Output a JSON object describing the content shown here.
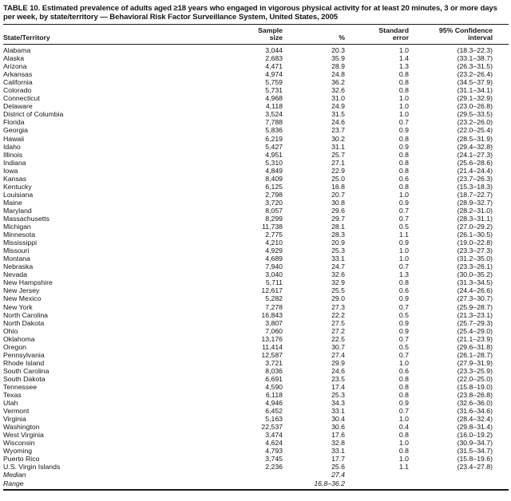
{
  "title": "TABLE 10. Estimated prevalence of adults aged ≥18 years who engaged in vigorous physical activity for at least 20 minutes, 3 or more days per week, by state/territory — Behavioral Risk Factor Surveillance System, United States, 2005",
  "columns": {
    "state": "State/Territory",
    "sample_top": "Sample",
    "sample_bottom": "size",
    "percent": "%",
    "se_top": "Standard",
    "se_bottom": "error",
    "ci_top": "95% Confidence",
    "ci_bottom": "interval"
  },
  "rows": [
    {
      "state": "Alabama",
      "sample": "3,044",
      "percent": "20.3",
      "se": "1.0",
      "ci": "(18.3–22.3)"
    },
    {
      "state": "Alaska",
      "sample": "2,683",
      "percent": "35.9",
      "se": "1.4",
      "ci": "(33.1–38.7)"
    },
    {
      "state": "Arizona",
      "sample": "4,471",
      "percent": "28.9",
      "se": "1.3",
      "ci": "(26.3–31.5)"
    },
    {
      "state": "Arkansas",
      "sample": "4,974",
      "percent": "24.8",
      "se": "0.8",
      "ci": "(23.2–26.4)"
    },
    {
      "state": "California",
      "sample": "5,759",
      "percent": "36.2",
      "se": "0.8",
      "ci": "(34.5–37.9)"
    },
    {
      "state": "Colorado",
      "sample": "5,731",
      "percent": "32.6",
      "se": "0.8",
      "ci": "(31.1–34.1)"
    },
    {
      "state": "Connecticut",
      "sample": "4,968",
      "percent": "31.0",
      "se": "1.0",
      "ci": "(29.1–32.9)"
    },
    {
      "state": "Delaware",
      "sample": "4,118",
      "percent": "24.9",
      "se": "1.0",
      "ci": "(23.0–26.8)"
    },
    {
      "state": "District of Columbia",
      "sample": "3,524",
      "percent": "31.5",
      "se": "1.0",
      "ci": "(29.5–33.5)"
    },
    {
      "state": "Florida",
      "sample": "7,788",
      "percent": "24.6",
      "se": "0.7",
      "ci": "(23.2–26.0)"
    },
    {
      "state": "Georgia",
      "sample": "5,836",
      "percent": "23.7",
      "se": "0.9",
      "ci": "(22.0–25.4)"
    },
    {
      "state": "Hawaii",
      "sample": "6,219",
      "percent": "30.2",
      "se": "0.8",
      "ci": "(28.5–31.9)"
    },
    {
      "state": "Idaho",
      "sample": "5,427",
      "percent": "31.1",
      "se": "0.9",
      "ci": "(29.4–32.8)"
    },
    {
      "state": "Illinois",
      "sample": "4,951",
      "percent": "25.7",
      "se": "0.8",
      "ci": "(24.1–27.3)"
    },
    {
      "state": "Indiana",
      "sample": "5,310",
      "percent": "27.1",
      "se": "0.8",
      "ci": "(25.6–28.6)"
    },
    {
      "state": "Iowa",
      "sample": "4,849",
      "percent": "22.9",
      "se": "0.8",
      "ci": "(21.4–24.4)"
    },
    {
      "state": "Kansas",
      "sample": "8,409",
      "percent": "25.0",
      "se": "0.6",
      "ci": "(23.7–26.3)"
    },
    {
      "state": "Kentucky",
      "sample": "6,125",
      "percent": "16.8",
      "se": "0.8",
      "ci": "(15.3–18.3)"
    },
    {
      "state": "Louisiana",
      "sample": "2,798",
      "percent": "20.7",
      "se": "1.0",
      "ci": "(18.7–22.7)"
    },
    {
      "state": "Maine",
      "sample": "3,720",
      "percent": "30.8",
      "se": "0.9",
      "ci": "(28.9–32.7)"
    },
    {
      "state": "Maryland",
      "sample": "8,057",
      "percent": "29.6",
      "se": "0.7",
      "ci": "(28.2–31.0)"
    },
    {
      "state": "Massachusetts",
      "sample": "8,299",
      "percent": "29.7",
      "se": "0.7",
      "ci": "(28.3–31.1)"
    },
    {
      "state": "Michigan",
      "sample": "11,738",
      "percent": "28.1",
      "se": "0.5",
      "ci": "(27.0–29.2)"
    },
    {
      "state": "Minnesota",
      "sample": "2,775",
      "percent": "28.3",
      "se": "1.1",
      "ci": "(26.1–30.5)"
    },
    {
      "state": "Mississippi",
      "sample": "4,210",
      "percent": "20.9",
      "se": "0.9",
      "ci": "(19.0–22.8)"
    },
    {
      "state": "Missouri",
      "sample": "4,929",
      "percent": "25.3",
      "se": "1.0",
      "ci": "(23.3–27.3)"
    },
    {
      "state": "Montana",
      "sample": "4,689",
      "percent": "33.1",
      "se": "1.0",
      "ci": "(31.2–35.0)"
    },
    {
      "state": "Nebraska",
      "sample": "7,940",
      "percent": "24.7",
      "se": "0.7",
      "ci": "(23.3–26.1)"
    },
    {
      "state": "Nevada",
      "sample": "3,040",
      "percent": "32.6",
      "se": "1.3",
      "ci": "(30.0–35.2)"
    },
    {
      "state": "New Hampshire",
      "sample": "5,711",
      "percent": "32.9",
      "se": "0.8",
      "ci": "(31.3–34.5)"
    },
    {
      "state": "New Jersey",
      "sample": "12,617",
      "percent": "25.5",
      "se": "0.6",
      "ci": "(24.4–26.6)"
    },
    {
      "state": "New Mexico",
      "sample": "5,282",
      "percent": "29.0",
      "se": "0.9",
      "ci": "(27.3–30.7)"
    },
    {
      "state": "New York",
      "sample": "7,278",
      "percent": "27.3",
      "se": "0.7",
      "ci": "(25.9–28.7)"
    },
    {
      "state": "North Carolina",
      "sample": "16,843",
      "percent": "22.2",
      "se": "0.5",
      "ci": "(21.3–23.1)"
    },
    {
      "state": "North Dakota",
      "sample": "3,807",
      "percent": "27.5",
      "se": "0.9",
      "ci": "(25.7–29.3)"
    },
    {
      "state": "Ohio",
      "sample": "7,060",
      "percent": "27.2",
      "se": "0.9",
      "ci": "(25.4–29.0)"
    },
    {
      "state": "Oklahoma",
      "sample": "13,176",
      "percent": "22.5",
      "se": "0.7",
      "ci": "(21.1–23.9)"
    },
    {
      "state": "Oregon",
      "sample": "11,414",
      "percent": "30.7",
      "se": "0.5",
      "ci": "(29.6–31.8)"
    },
    {
      "state": "Pennsylvania",
      "sample": "12,587",
      "percent": "27.4",
      "se": "0.7",
      "ci": "(26.1–28.7)"
    },
    {
      "state": "Rhode Island",
      "sample": "3,721",
      "percent": "29.9",
      "se": "1.0",
      "ci": "(27.9–31.9)"
    },
    {
      "state": "South Carolina",
      "sample": "8,036",
      "percent": "24.6",
      "se": "0.6",
      "ci": "(23.3–25.9)"
    },
    {
      "state": "South Dakota",
      "sample": "6,691",
      "percent": "23.5",
      "se": "0.8",
      "ci": "(22.0–25.0)"
    },
    {
      "state": "Tennessee",
      "sample": "4,590",
      "percent": "17.4",
      "se": "0.8",
      "ci": "(15.8–19.0)"
    },
    {
      "state": "Texas",
      "sample": "6,118",
      "percent": "25.3",
      "se": "0.8",
      "ci": "(23.8–26.8)"
    },
    {
      "state": "Utah",
      "sample": "4,946",
      "percent": "34.3",
      "se": "0.9",
      "ci": "(32.6–36.0)"
    },
    {
      "state": "Vermont",
      "sample": "6,452",
      "percent": "33.1",
      "se": "0.7",
      "ci": "(31.6–34.6)"
    },
    {
      "state": "Virginia",
      "sample": "5,163",
      "percent": "30.4",
      "se": "1.0",
      "ci": "(28.4–32.4)"
    },
    {
      "state": "Washington",
      "sample": "22,537",
      "percent": "30.6",
      "se": "0.4",
      "ci": "(29.8–31.4)"
    },
    {
      "state": "West Virginia",
      "sample": "3,474",
      "percent": "17.6",
      "se": "0.8",
      "ci": "(16.0–19.2)"
    },
    {
      "state": "Wisconsin",
      "sample": "4,624",
      "percent": "32.8",
      "se": "1.0",
      "ci": "(30.9–34.7)"
    },
    {
      "state": "Wyoming",
      "sample": "4,793",
      "percent": "33.1",
      "se": "0.8",
      "ci": "(31.5–34.7)"
    },
    {
      "state": "Puerto Rico",
      "sample": "3,745",
      "percent": "17.7",
      "se": "1.0",
      "ci": "(15.8–19.6)"
    },
    {
      "state": "U.S. Virgin Islands",
      "sample": "2,236",
      "percent": "25.6",
      "se": "1.1",
      "ci": "(23.4–27.8)"
    }
  ],
  "summary": {
    "median_label": "Median",
    "median_value": "27.4",
    "range_label": "Range",
    "range_value": "16.8–36.2"
  }
}
